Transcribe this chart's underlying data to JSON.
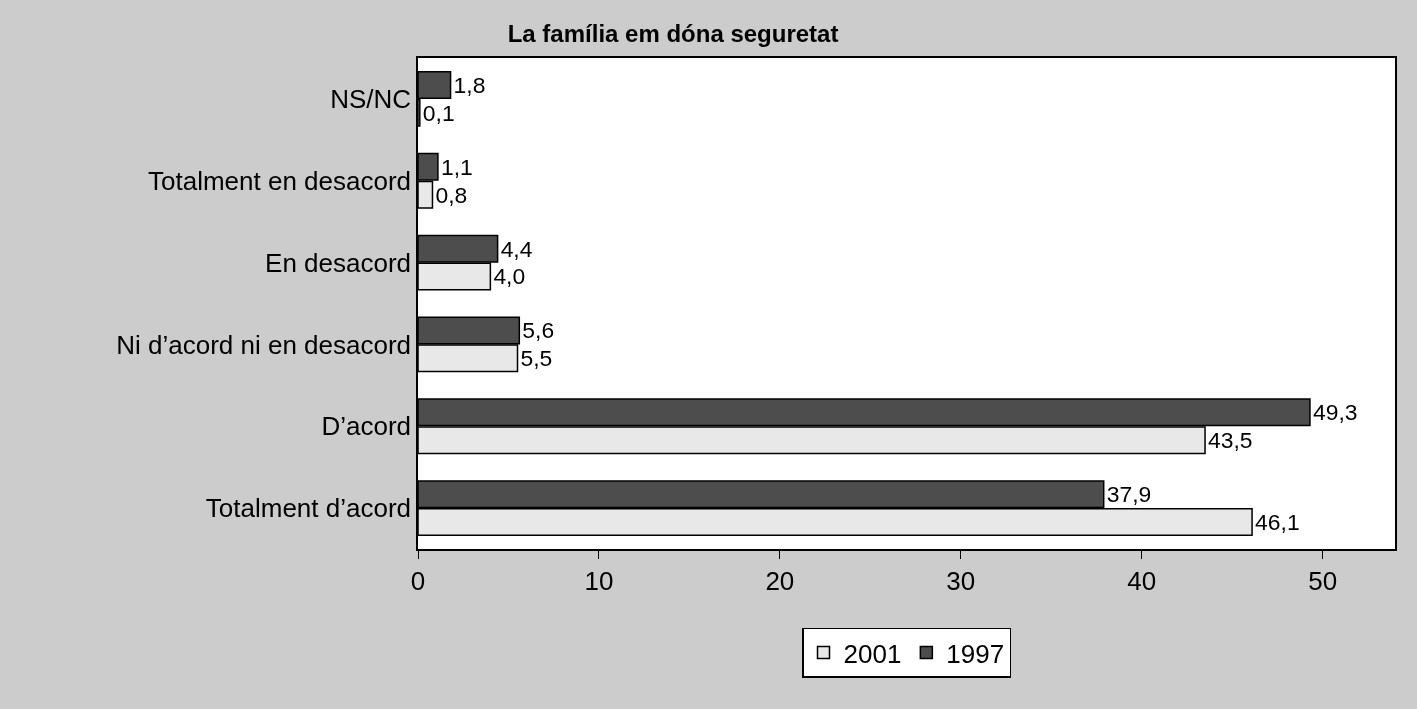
{
  "chart_data": {
    "type": "bar",
    "orientation": "horizontal",
    "title": "La família em dóna seguretat",
    "categories": [
      "NS/NC",
      "Totalment en desacord",
      "En desacord",
      "Ni d’acord ni en desacord",
      "D’acord",
      "Totalment d’acord"
    ],
    "series": [
      {
        "name": "2001",
        "color": "#e8e8e8",
        "values": [
          0.1,
          0.8,
          4.0,
          5.5,
          43.5,
          46.1
        ],
        "value_labels": [
          "0,1",
          "0,8",
          "4,0",
          "5,5",
          "43,5",
          "46,1"
        ]
      },
      {
        "name": "1997",
        "color": "#4d4d4d",
        "values": [
          1.8,
          1.1,
          4.4,
          5.6,
          49.3,
          37.9
        ],
        "value_labels": [
          "1,8",
          "1,1",
          "4,4",
          "5,6",
          "49,3",
          "37,9"
        ]
      }
    ],
    "xlim": [
      0,
      54
    ],
    "xticks": [
      0,
      10,
      20,
      30,
      40,
      50
    ],
    "legend": "bottom"
  }
}
